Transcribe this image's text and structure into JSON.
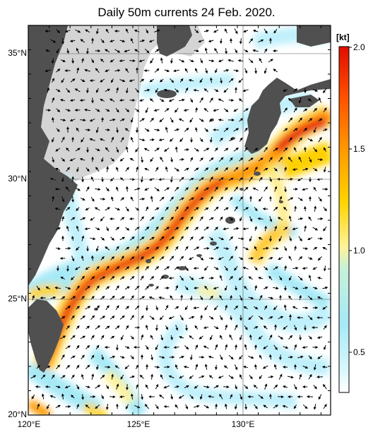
{
  "title": "Daily 50m currents 24 Feb. 2020.",
  "lat_labels": [
    "35°N",
    "30°N",
    "25°N",
    "20°N"
  ],
  "lat_values": [
    35,
    30,
    25,
    20
  ],
  "lon_labels": [
    "120°E",
    "125°E",
    "130°E"
  ],
  "lon_values": [
    120,
    125,
    130
  ],
  "extent": {
    "lon": [
      120,
      134
    ],
    "lat": [
      20,
      36
    ]
  },
  "colorbar": {
    "unit": "[kt]",
    "ticks": [
      "0.5",
      "1.0",
      "1.5",
      "2.0"
    ],
    "tick_values": [
      0.5,
      1.0,
      1.5,
      2.0
    ],
    "range": [
      0.3,
      2.0
    ],
    "colors": [
      "#ffffff",
      "#bff0fb",
      "#9fe6f4",
      "#fff39a",
      "#ffd400",
      "#ff9a00",
      "#ff5200",
      "#e10c00"
    ]
  },
  "colors": {
    "ocean": "#ffffff",
    "land": "#505050",
    "shelf": "#d4d4d4",
    "grid": "#555555"
  }
}
